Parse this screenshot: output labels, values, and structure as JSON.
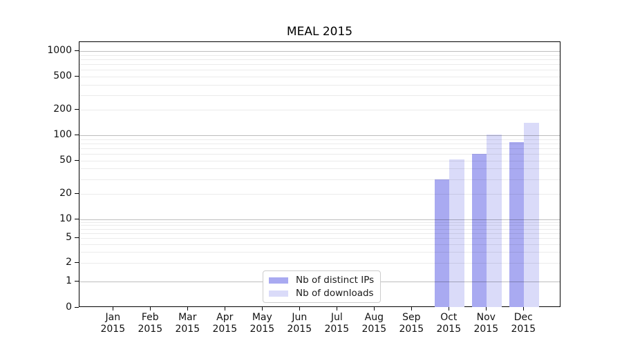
{
  "title": "MEAL 2015",
  "colors": {
    "distinct_ips": "#a9aaf1",
    "downloads": "#dadbf9",
    "grid_minor": "rgba(0,0,0,0.08)",
    "grid_major": "rgba(0,0,0,0.26)",
    "spine": "#000000",
    "legend_border": "#cccccc"
  },
  "legend": {
    "items": [
      {
        "label": "Nb of distinct IPs",
        "color_key": "distinct_ips"
      },
      {
        "label": "Nb of downloads",
        "color_key": "downloads"
      }
    ]
  },
  "x_axis": {
    "month_labels": [
      "Jan",
      "Feb",
      "Mar",
      "Apr",
      "May",
      "Jun",
      "Jul",
      "Aug",
      "Sep",
      "Oct",
      "Nov",
      "Dec"
    ],
    "year_label": "2015"
  },
  "y_axis": {
    "tick_labels": [
      "0",
      "1",
      "2",
      "5",
      "10",
      "20",
      "50",
      "100",
      "200",
      "500",
      "1000"
    ]
  },
  "chart_data": {
    "type": "bar",
    "title": "MEAL 2015",
    "categories": [
      "Jan 2015",
      "Feb 2015",
      "Mar 2015",
      "Apr 2015",
      "May 2015",
      "Jun 2015",
      "Jul 2015",
      "Aug 2015",
      "Sep 2015",
      "Oct 2015",
      "Nov 2015",
      "Dec 2015"
    ],
    "series": [
      {
        "name": "Nb of distinct IPs",
        "values": [
          0,
          0,
          0,
          0,
          0,
          0,
          0,
          0,
          0,
          30,
          60,
          82
        ],
        "color": "#a9aaf1"
      },
      {
        "name": "Nb of downloads",
        "values": [
          0,
          0,
          0,
          0,
          0,
          0,
          0,
          0,
          0,
          52,
          102,
          140
        ],
        "color": "#dadbf9"
      }
    ],
    "xlabel": "",
    "ylabel": "",
    "y_scale": "symlog",
    "y_tick_values": [
      0,
      1,
      2,
      5,
      10,
      20,
      50,
      100,
      200,
      500,
      1000
    ],
    "y_minor_grid_values": [
      3,
      4,
      6,
      7,
      8,
      9,
      30,
      40,
      60,
      70,
      80,
      90,
      300,
      400,
      600,
      700,
      800,
      900
    ],
    "y_major_grid_values": [
      1,
      10,
      100,
      1000
    ],
    "ylim": [
      0,
      1280
    ],
    "grid": "horizontal",
    "legend_position": "lower center"
  }
}
